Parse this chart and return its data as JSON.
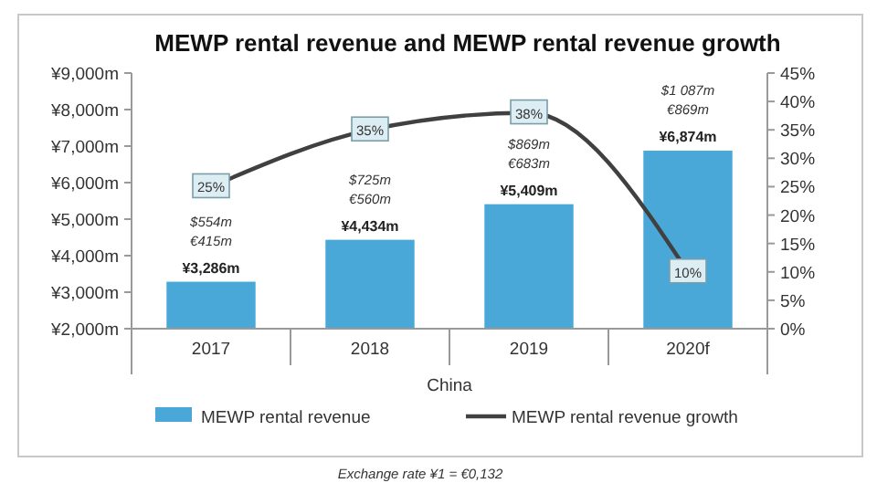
{
  "chart_data": {
    "type": "bar",
    "title": "MEWP rental revenue and MEWP rental revenue growth",
    "xlabel": "China",
    "categories": [
      "2017",
      "2018",
      "2019",
      "2020f"
    ],
    "series": [
      {
        "name": "MEWP rental revenue",
        "color": "#4aa8d8",
        "values": [
          3286,
          4434,
          5409,
          6874
        ],
        "value_labels": [
          "¥3,286m",
          "¥4,434m",
          "¥5,409m",
          "¥6,874m"
        ]
      },
      {
        "name": "MEWP rental revenue growth",
        "type": "line",
        "axis": "y2",
        "color": "#404040",
        "marker": "square",
        "values": [
          25,
          35,
          38,
          10
        ],
        "value_labels": [
          "25%",
          "35%",
          "38%",
          "10%"
        ]
      }
    ],
    "ylim": [
      2000,
      9000
    ],
    "yticks": [
      {
        "value": 2000,
        "label": "¥2,000m"
      },
      {
        "value": 3000,
        "label": "¥3,000m"
      },
      {
        "value": 4000,
        "label": "¥4,000m"
      },
      {
        "value": 5000,
        "label": "¥5,000m"
      },
      {
        "value": 6000,
        "label": "¥6,000m"
      },
      {
        "value": 7000,
        "label": "¥7,000m"
      },
      {
        "value": 8000,
        "label": "¥8,000m"
      },
      {
        "value": 9000,
        "label": "¥9,000m"
      }
    ],
    "y2lim": [
      0,
      45
    ],
    "y2ticks": [
      {
        "value": 0,
        "label": "0%"
      },
      {
        "value": 5,
        "label": "5%"
      },
      {
        "value": 10,
        "label": "10%"
      },
      {
        "value": 15,
        "label": "15%"
      },
      {
        "value": 20,
        "label": "20%"
      },
      {
        "value": 25,
        "label": "25%"
      },
      {
        "value": 30,
        "label": "30%"
      },
      {
        "value": 35,
        "label": "35%"
      },
      {
        "value": 40,
        "label": "40%"
      },
      {
        "value": 45,
        "label": "45%"
      }
    ],
    "legend": "bottom",
    "grid": false,
    "annotations": [
      "$554m",
      "€415m",
      "$725m",
      "€560m",
      "$869m",
      "€683m",
      "$1 087m",
      "€869m",
      "Exchange rate ¥1 = €0,132"
    ]
  }
}
